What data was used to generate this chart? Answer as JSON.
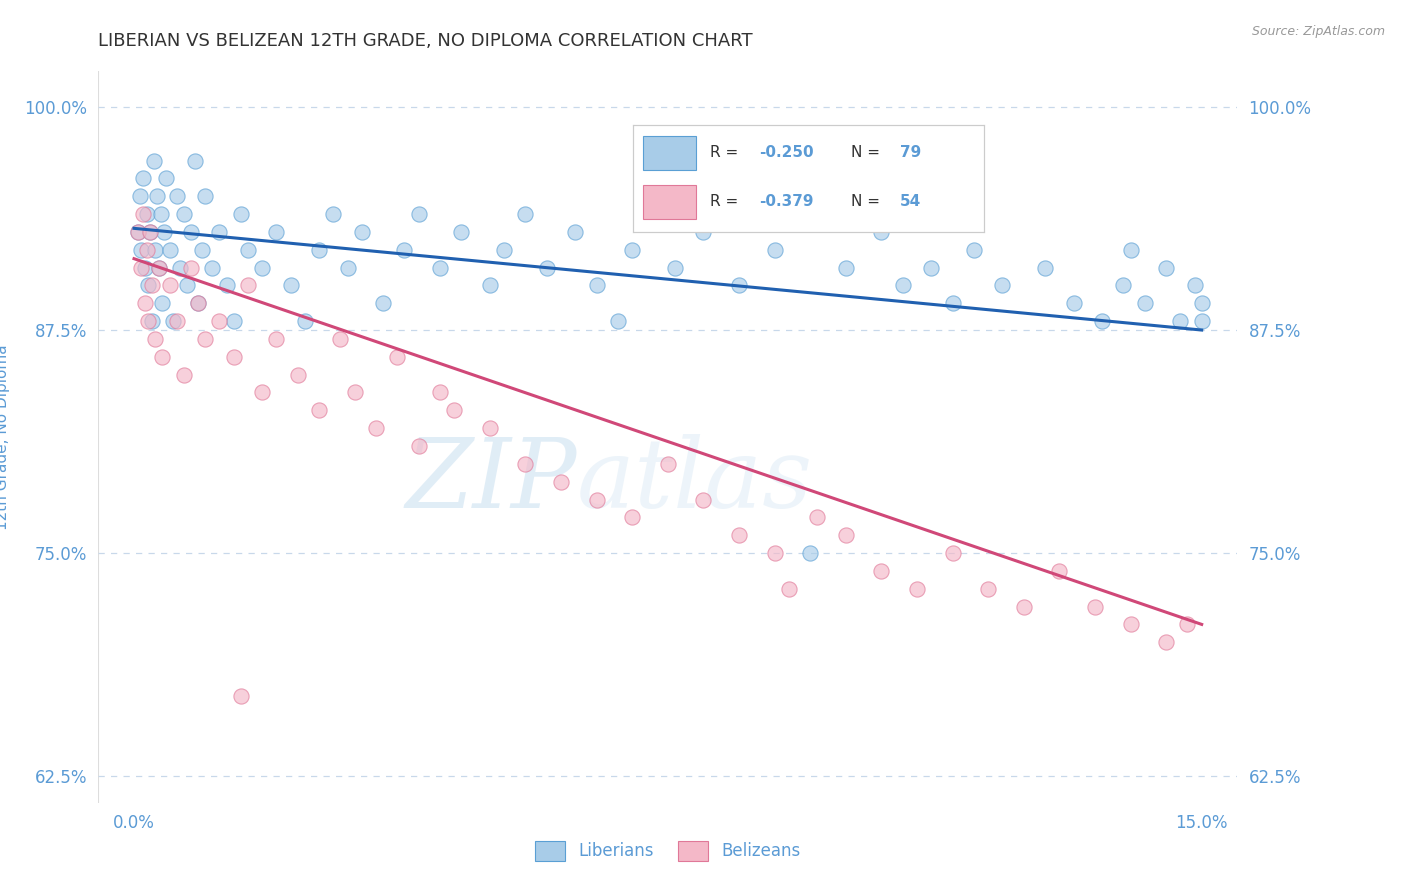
{
  "title": "LIBERIAN VS BELIZEAN 12TH GRADE, NO DIPLOMA CORRELATION CHART",
  "source_text": "Source: ZipAtlas.com",
  "ylabel": "12th Grade, No Diploma",
  "xlim": [
    0.0,
    15.0
  ],
  "ylim": [
    62.5,
    100.0
  ],
  "yticks": [
    62.5,
    75.0,
    87.5,
    100.0
  ],
  "ytick_labels": [
    "62.5%",
    "75.0%",
    "87.5%",
    "100.0%"
  ],
  "liberian_R": -0.25,
  "liberian_N": 79,
  "belizean_R": -0.379,
  "belizean_N": 54,
  "blue_fill": "#a8cce8",
  "blue_edge": "#5a9fd4",
  "pink_fill": "#f4b8c8",
  "pink_edge": "#e07898",
  "blue_line_color": "#2060b0",
  "pink_line_color": "#d04878",
  "blue_line": {
    "x0": 0.0,
    "x1": 15.0,
    "y0": 93.2,
    "y1": 87.5
  },
  "pink_line": {
    "x0": 0.0,
    "x1": 15.0,
    "y0": 91.5,
    "y1": 71.0
  },
  "title_color": "#333333",
  "axis_color": "#5b9bd5",
  "grid_color": "#c8d8ea",
  "scatter_alpha": 0.65,
  "scatter_size": 120,
  "blue_x": [
    0.05,
    0.08,
    0.1,
    0.12,
    0.15,
    0.18,
    0.2,
    0.22,
    0.25,
    0.28,
    0.3,
    0.32,
    0.35,
    0.38,
    0.4,
    0.42,
    0.45,
    0.5,
    0.55,
    0.6,
    0.65,
    0.7,
    0.75,
    0.8,
    0.85,
    0.9,
    0.95,
    1.0,
    1.1,
    1.2,
    1.3,
    1.4,
    1.5,
    1.6,
    1.8,
    2.0,
    2.2,
    2.4,
    2.6,
    2.8,
    3.0,
    3.2,
    3.5,
    3.8,
    4.0,
    4.3,
    4.6,
    5.0,
    5.2,
    5.5,
    5.8,
    6.2,
    6.5,
    6.8,
    7.0,
    7.3,
    7.6,
    8.0,
    8.5,
    9.0,
    9.5,
    10.0,
    10.5,
    10.8,
    11.2,
    11.5,
    11.8,
    12.2,
    12.8,
    13.2,
    13.6,
    13.9,
    14.0,
    14.2,
    14.5,
    14.7,
    14.9,
    15.0,
    15.0
  ],
  "blue_y": [
    93,
    95,
    92,
    96,
    91,
    94,
    90,
    93,
    88,
    97,
    92,
    95,
    91,
    94,
    89,
    93,
    96,
    92,
    88,
    95,
    91,
    94,
    90,
    93,
    97,
    89,
    92,
    95,
    91,
    93,
    90,
    88,
    94,
    92,
    91,
    93,
    90,
    88,
    92,
    94,
    91,
    93,
    89,
    92,
    94,
    91,
    93,
    90,
    92,
    94,
    91,
    93,
    90,
    88,
    92,
    94,
    91,
    93,
    90,
    92,
    75,
    91,
    93,
    90,
    91,
    89,
    92,
    90,
    91,
    89,
    88,
    90,
    92,
    89,
    91,
    88,
    90,
    89,
    88
  ],
  "pink_x": [
    0.05,
    0.1,
    0.12,
    0.15,
    0.18,
    0.2,
    0.22,
    0.25,
    0.3,
    0.35,
    0.4,
    0.5,
    0.6,
    0.7,
    0.8,
    0.9,
    1.0,
    1.2,
    1.4,
    1.6,
    1.8,
    2.0,
    2.3,
    2.6,
    2.9,
    3.1,
    3.4,
    3.7,
    4.0,
    4.3,
    4.5,
    1.5,
    5.0,
    5.5,
    6.0,
    6.5,
    7.0,
    7.5,
    8.0,
    8.5,
    9.0,
    9.2,
    9.6,
    10.0,
    10.5,
    11.0,
    11.5,
    12.0,
    12.5,
    13.0,
    13.5,
    14.0,
    14.5,
    14.8
  ],
  "pink_y": [
    93,
    91,
    94,
    89,
    92,
    88,
    93,
    90,
    87,
    91,
    86,
    90,
    88,
    85,
    91,
    89,
    87,
    88,
    86,
    90,
    84,
    87,
    85,
    83,
    87,
    84,
    82,
    86,
    81,
    84,
    83,
    67,
    82,
    80,
    79,
    78,
    77,
    80,
    78,
    76,
    75,
    73,
    77,
    76,
    74,
    73,
    75,
    73,
    72,
    74,
    72,
    71,
    70,
    71
  ]
}
